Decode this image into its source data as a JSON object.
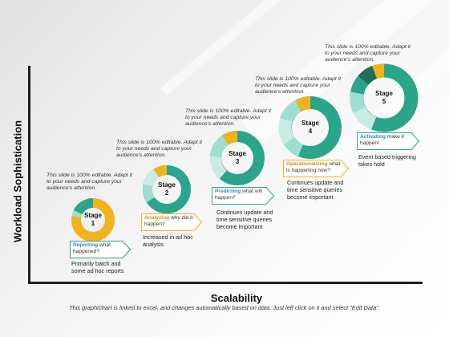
{
  "axes": {
    "y_label": "Workload Sophistication",
    "x_label": "Scalability"
  },
  "footer": "This graph/chart is linked to excel, and changes automatically based on data. Just left click on it and select \"Edit Data\".",
  "note_text": "This slide is 100% editable. Adapt it to your needs and capture your audience's attention.",
  "colors": {
    "teal": "#2aa58c",
    "light_teal": "#9fded0",
    "pale_teal": "#c8ece4",
    "dark_green": "#1f6e5a",
    "yellow": "#f2b21b",
    "blue_text": "#2e86c1"
  },
  "stages": [
    {
      "label_line1": "Stage",
      "label_line2": "1",
      "tag_bold": "Reporting",
      "tag_rest": " what happened?",
      "tag_color": "#2aa58c",
      "description": "Primarily batch and some ad hoc reports"
    },
    {
      "label_line1": "Stage",
      "label_line2": "2",
      "tag_bold": "Analyzing",
      "tag_rest": " why did it happen?",
      "tag_color": "#f2b21b",
      "description": "Increased in ad hoc analysis"
    },
    {
      "label_line1": "Stage",
      "label_line2": "3",
      "tag_bold": "Predicting",
      "tag_rest": " what will happen?",
      "tag_color": "#2aa58c",
      "description": "Continues update and time sensitive queries become important"
    },
    {
      "label_line1": "Stage",
      "label_line2": "4",
      "tag_bold": "Operationalizing",
      "tag_rest": " what is happening now?",
      "tag_color": "#f2b21b",
      "description": "Continues update and time sensitive queries become important"
    },
    {
      "label_line1": "Stage",
      "label_line2": "5",
      "tag_bold": "Activating",
      "tag_rest": " make it happen!",
      "tag_color": "#2aa58c",
      "description": "Event based triggering takes hold"
    }
  ]
}
